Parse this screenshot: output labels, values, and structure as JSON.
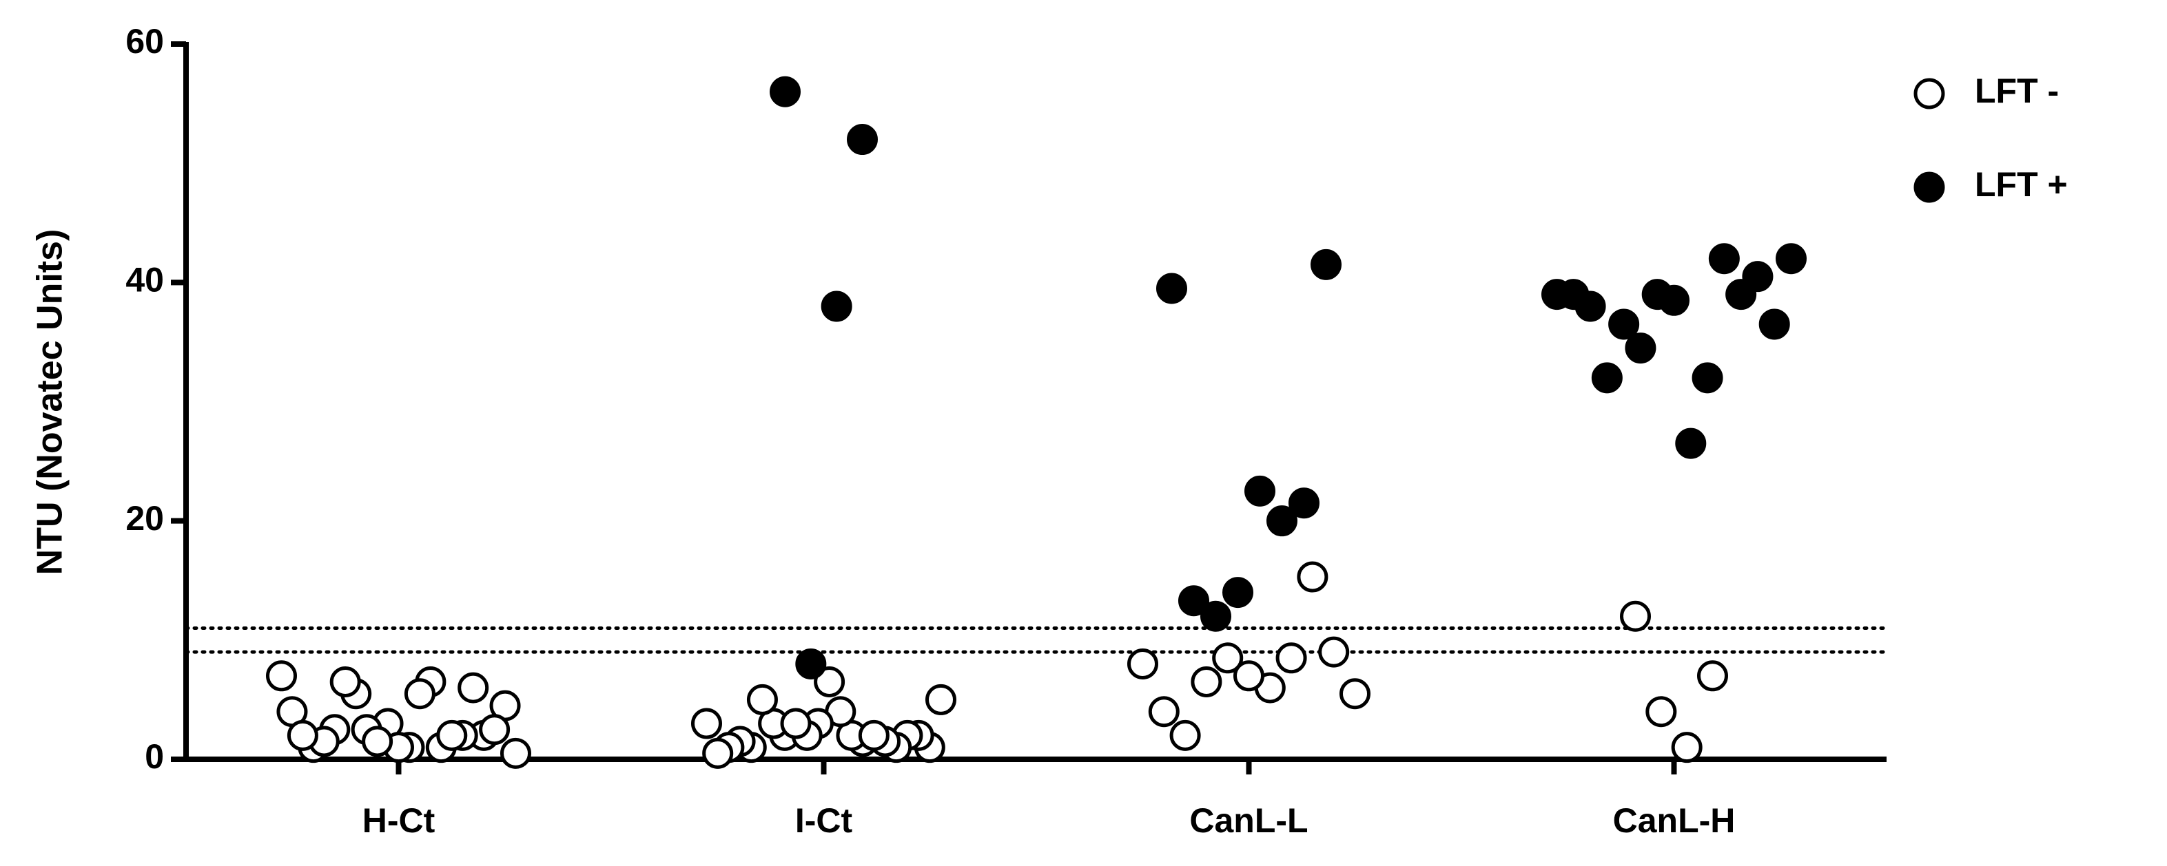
{
  "chart_data": {
    "type": "scatter",
    "y_label": "NTU (Novatec Units)",
    "categories": [
      "H-Ct",
      "I-Ct",
      "CanL-L",
      "CanL-H"
    ],
    "ylim": [
      0,
      60
    ],
    "yticks": [
      0,
      20,
      40,
      60
    ],
    "reference_lines": [
      9,
      11
    ],
    "legend": "top-right",
    "series": [
      {
        "name": "LFT -",
        "color": "#000000",
        "filled": false,
        "values": [
          [
            7,
            5.5,
            6.5,
            4.5,
            2.5,
            1,
            2,
            1,
            3,
            2,
            4,
            2.5,
            1,
            0.5,
            6.5,
            5.5,
            2.5,
            1.5,
            1,
            6,
            2,
            1.5,
            2
          ],
          [
            3,
            2,
            1.5,
            5,
            3,
            2,
            1,
            5,
            4,
            2,
            1,
            6.5,
            2,
            1.5,
            3,
            1,
            1,
            2,
            1.5,
            0.5,
            3,
            2
          ],
          [
            8,
            8.5,
            6.5,
            5.5,
            6,
            2,
            9,
            7,
            4,
            15.3,
            8.5
          ],
          [
            12,
            7,
            1,
            4
          ]
        ]
      },
      {
        "name": "LFT +",
        "color": "#000000",
        "filled": true,
        "values": [
          [],
          [
            56,
            52,
            38,
            8
          ],
          [
            39.5,
            41.5,
            21.5,
            20,
            22.5,
            14,
            12,
            13.3
          ],
          [
            39,
            38.5,
            42,
            39,
            36.5,
            34.5,
            40.5,
            36.5,
            39,
            32,
            42,
            38,
            32,
            39,
            26.5
          ]
        ]
      }
    ]
  }
}
